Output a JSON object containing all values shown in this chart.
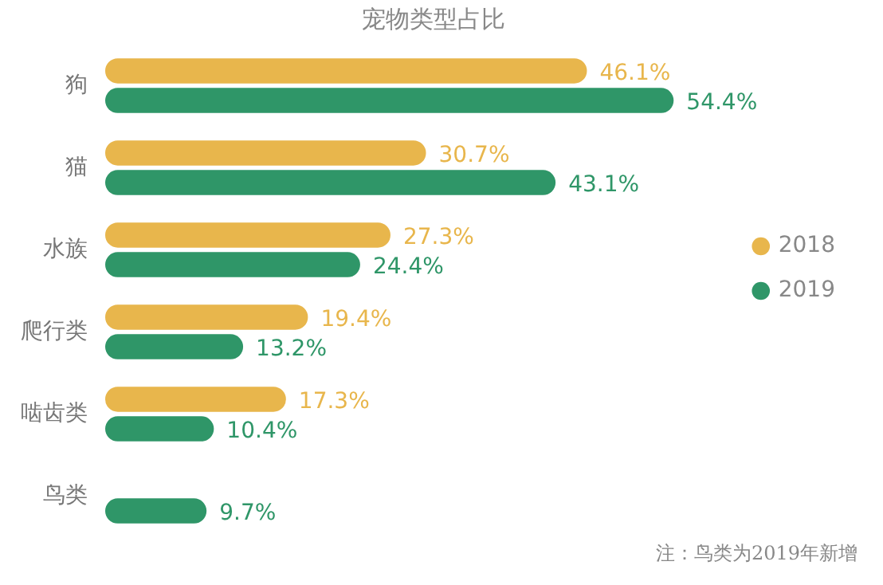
{
  "chart_data": {
    "type": "bar",
    "orientation": "horizontal",
    "title": "宠物类型占比",
    "categories": [
      "狗",
      "猫",
      "水族",
      "爬行类",
      "啮齿类",
      "鸟类"
    ],
    "series": [
      {
        "name": "2018",
        "color": "#e8b64c",
        "values": [
          46.1,
          30.7,
          27.3,
          19.4,
          17.3,
          null
        ],
        "value_labels": [
          "46.1%",
          "30.7%",
          "27.3%",
          "19.4%",
          "17.3%",
          null
        ]
      },
      {
        "name": "2019",
        "color": "#2f9668",
        "values": [
          54.4,
          43.1,
          24.4,
          13.2,
          10.4,
          9.7
        ],
        "value_labels": [
          "54.4%",
          "43.1%",
          "24.4%",
          "13.2%",
          "10.4%",
          "9.7%"
        ]
      }
    ],
    "tick_labels": "y",
    "legend": "right",
    "annotations": [
      "注：鸟类为2019年新增"
    ]
  }
}
